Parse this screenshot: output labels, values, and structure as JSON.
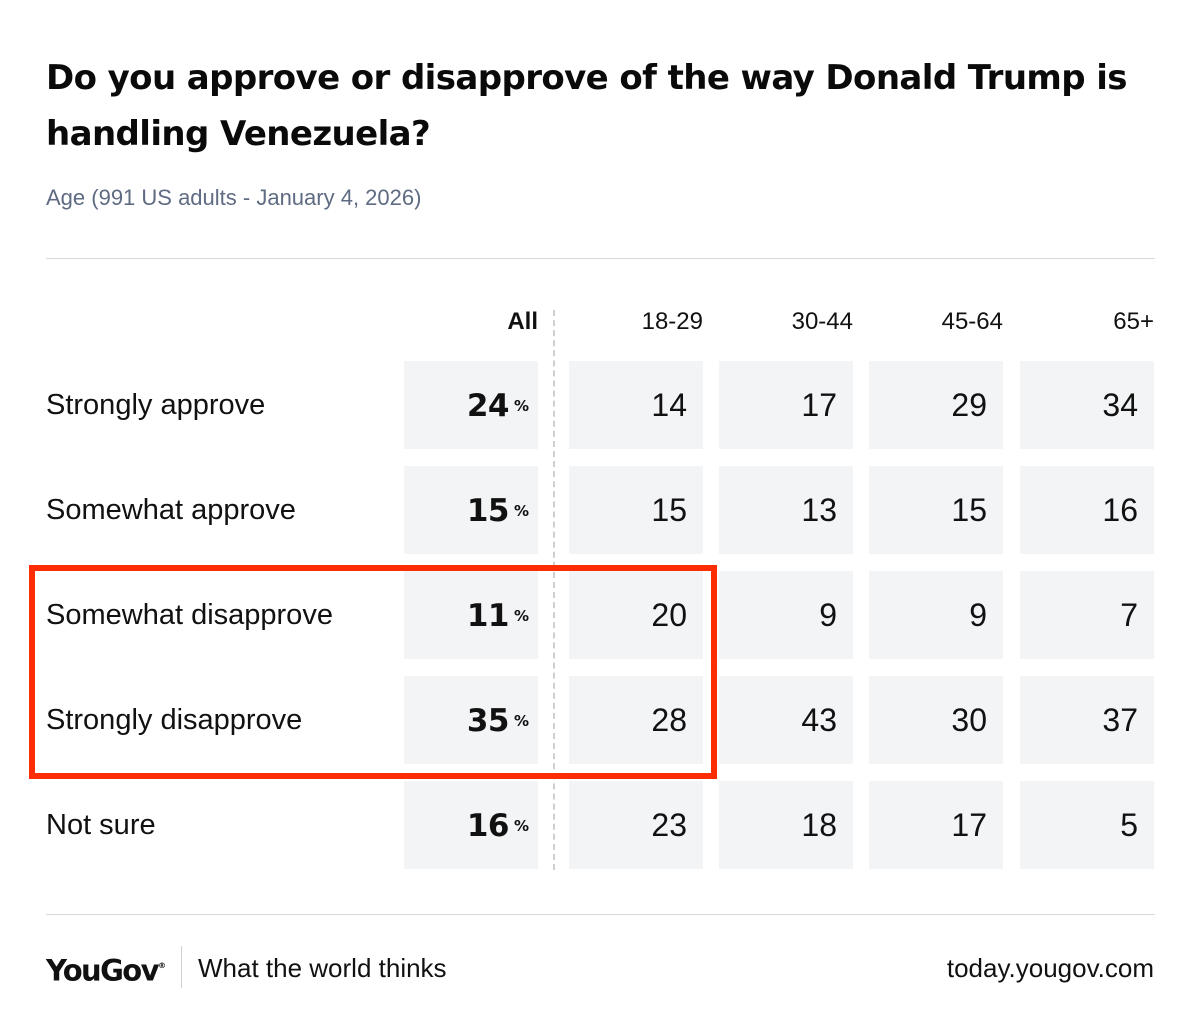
{
  "chart_data": {
    "type": "table",
    "title": "Do you approve or disapprove of the way Donald Trump is handling Venezuela?",
    "subtitle": "Age (991 US adults - January 4, 2026)",
    "columns": [
      "All",
      "18-29",
      "30-44",
      "45-64",
      "65+"
    ],
    "percent_symbol": "%",
    "rows": [
      {
        "label": "Strongly approve",
        "values": [
          24,
          14,
          17,
          29,
          34
        ]
      },
      {
        "label": "Somewhat approve",
        "values": [
          15,
          15,
          13,
          15,
          16
        ]
      },
      {
        "label": "Somewhat disapprove",
        "values": [
          11,
          20,
          9,
          9,
          7
        ]
      },
      {
        "label": "Strongly disapprove",
        "values": [
          35,
          28,
          43,
          30,
          37
        ]
      },
      {
        "label": "Not sure",
        "values": [
          16,
          23,
          18,
          17,
          5
        ]
      }
    ],
    "highlight_color": "#fc2c03",
    "highlight_note": "disapprove rows, All and 18-29 columns outlined"
  },
  "footer": {
    "brand": "YouGov",
    "brand_mark": "®",
    "tagline": "What the world thinks",
    "site": "today.yougov.com"
  },
  "icons": {
    "logo": "yougov-logo"
  }
}
